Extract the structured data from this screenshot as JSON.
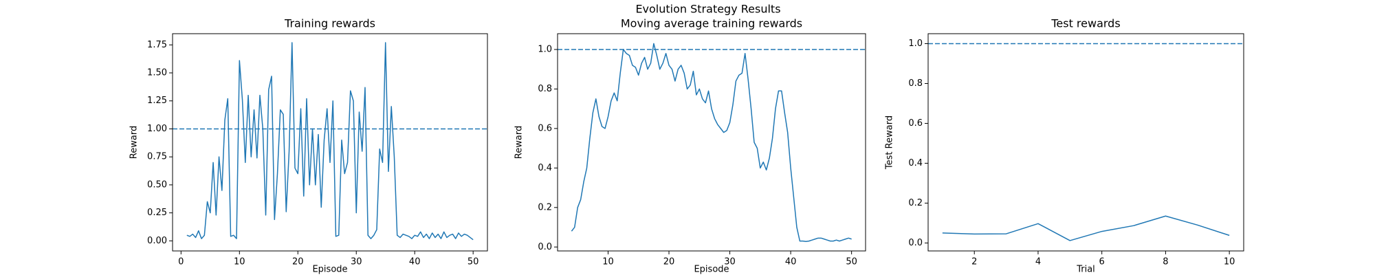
{
  "title": "Evolution Strategy Results",
  "chart_data": [
    {
      "type": "line",
      "title": "Training rewards",
      "xlabel": "Episode",
      "ylabel": "Reward",
      "color": "#1f77b4",
      "x": [
        1,
        1.5,
        2,
        2.5,
        3,
        3.5,
        4,
        4.5,
        5,
        5.5,
        6,
        6.5,
        7,
        7.5,
        8,
        8.5,
        9,
        9.5,
        10,
        10.5,
        11,
        11.5,
        12,
        12.5,
        13,
        13.5,
        14,
        14.5,
        15,
        15.5,
        16,
        16.5,
        17,
        17.5,
        18,
        18.5,
        19,
        19.5,
        20,
        20.5,
        21,
        21.5,
        22,
        22.5,
        23,
        23.5,
        24,
        24.5,
        25,
        25.5,
        26,
        26.5,
        27,
        27.5,
        28,
        28.5,
        29,
        29.5,
        30,
        30.5,
        31,
        31.5,
        32,
        32.5,
        33,
        33.5,
        34,
        34.5,
        35,
        35.5,
        36,
        36.5,
        37,
        37.5,
        38,
        38.5,
        39,
        39.5,
        40,
        40.5,
        41,
        41.5,
        42,
        42.5,
        43,
        43.5,
        44,
        44.5,
        45,
        45.5,
        46,
        46.5,
        47,
        47.5,
        48,
        48.5,
        49,
        49.5,
        50
      ],
      "values": [
        0.05,
        0.04,
        0.06,
        0.03,
        0.09,
        0.02,
        0.05,
        0.35,
        0.25,
        0.7,
        0.23,
        0.75,
        0.45,
        1.08,
        1.27,
        0.04,
        0.05,
        0.02,
        1.61,
        1.26,
        0.7,
        1.3,
        0.75,
        1.17,
        0.74,
        1.3,
        1.0,
        0.23,
        1.35,
        1.47,
        0.19,
        0.6,
        1.17,
        1.13,
        0.26,
        0.8,
        1.77,
        0.65,
        0.6,
        1.18,
        0.4,
        1.27,
        0.5,
        1.0,
        0.5,
        0.95,
        0.3,
        0.9,
        1.18,
        0.7,
        1.25,
        0.04,
        0.05,
        0.9,
        0.6,
        0.7,
        1.34,
        1.25,
        0.25,
        1.15,
        0.8,
        1.37,
        0.05,
        0.02,
        0.05,
        0.1,
        0.82,
        0.7,
        1.77,
        0.62,
        1.2,
        0.75,
        0.05,
        0.03,
        0.06,
        0.05,
        0.04,
        0.02,
        0.05,
        0.04,
        0.08,
        0.03,
        0.06,
        0.02,
        0.07,
        0.03,
        0.06,
        0.02,
        0.08,
        0.03,
        0.05,
        0.06,
        0.02,
        0.07,
        0.04,
        0.06,
        0.05,
        0.03,
        0.01
      ],
      "xlim": [
        -1.45,
        52.45
      ],
      "ylim": [
        -0.09,
        1.85
      ],
      "xticks": [
        0,
        10,
        20,
        30,
        40,
        50
      ],
      "yticks": [
        {
          "value": 0,
          "label": "0.00"
        },
        {
          "value": 0.25,
          "label": "0.25"
        },
        {
          "value": 0.5,
          "label": "0.50"
        },
        {
          "value": 0.75,
          "label": "0.75"
        },
        {
          "value": 1,
          "label": "1.00"
        },
        {
          "value": 1.25,
          "label": "1.25"
        },
        {
          "value": 1.5,
          "label": "1.50"
        },
        {
          "value": 1.75,
          "label": "1.75"
        }
      ],
      "hline": 1.0
    },
    {
      "type": "line",
      "title": "Moving average training rewards",
      "xlabel": "Episode",
      "ylabel": "Reward",
      "color": "#1f77b4",
      "x": [
        4,
        4.5,
        5,
        5.5,
        6,
        6.5,
        7,
        7.5,
        8,
        8.5,
        9,
        9.5,
        10,
        10.5,
        11,
        11.5,
        12,
        12.5,
        13,
        13.5,
        14,
        14.5,
        15,
        15.5,
        16,
        16.5,
        17,
        17.5,
        18,
        18.5,
        19,
        19.5,
        20,
        20.5,
        21,
        21.5,
        22,
        22.5,
        23,
        23.5,
        24,
        24.5,
        25,
        25.5,
        26,
        26.5,
        27,
        27.5,
        28,
        28.5,
        29,
        29.5,
        30,
        30.5,
        31,
        31.5,
        32,
        32.5,
        33,
        33.5,
        34,
        34.5,
        35,
        35.5,
        36,
        36.5,
        37,
        37.5,
        38,
        38.5,
        39,
        39.5,
        40,
        40.5,
        41,
        41.5,
        42,
        42.5,
        43,
        43.5,
        44,
        44.5,
        45,
        45.5,
        46,
        46.5,
        47,
        47.5,
        48,
        48.5,
        49,
        49.5,
        50
      ],
      "values": [
        0.08,
        0.1,
        0.2,
        0.24,
        0.33,
        0.4,
        0.55,
        0.68,
        0.75,
        0.66,
        0.61,
        0.6,
        0.66,
        0.74,
        0.78,
        0.74,
        0.88,
        1.0,
        0.98,
        0.97,
        0.92,
        0.91,
        0.87,
        0.93,
        0.96,
        0.9,
        0.93,
        1.03,
        0.97,
        0.9,
        0.93,
        0.98,
        0.92,
        0.9,
        0.84,
        0.9,
        0.92,
        0.88,
        0.8,
        0.82,
        0.89,
        0.77,
        0.8,
        0.75,
        0.73,
        0.79,
        0.7,
        0.65,
        0.62,
        0.6,
        0.58,
        0.59,
        0.63,
        0.72,
        0.84,
        0.87,
        0.88,
        0.98,
        0.85,
        0.7,
        0.53,
        0.5,
        0.4,
        0.43,
        0.39,
        0.45,
        0.55,
        0.7,
        0.79,
        0.79,
        0.68,
        0.58,
        0.4,
        0.25,
        0.1,
        0.03,
        0.03,
        0.028,
        0.03,
        0.035,
        0.04,
        0.045,
        0.045,
        0.04,
        0.035,
        0.03,
        0.03,
        0.035,
        0.03,
        0.035,
        0.04,
        0.045,
        0.04
      ],
      "xlim": [
        1.7,
        52.3
      ],
      "ylim": [
        -0.02,
        1.08
      ],
      "xticks": [
        10,
        20,
        30,
        40,
        50
      ],
      "yticks": [
        {
          "value": 0,
          "label": "0.0"
        },
        {
          "value": 0.2,
          "label": "0.2"
        },
        {
          "value": 0.4,
          "label": "0.4"
        },
        {
          "value": 0.6,
          "label": "0.6"
        },
        {
          "value": 0.8,
          "label": "0.8"
        },
        {
          "value": 1,
          "label": "1.0"
        }
      ],
      "hline": 1.0
    },
    {
      "type": "line",
      "title": "Test rewards",
      "xlabel": "Trial",
      "ylabel": "Test Reward",
      "color": "#1f77b4",
      "x": [
        1,
        2,
        3,
        4,
        5,
        6,
        7,
        8,
        9,
        10
      ],
      "values": [
        0.05,
        0.045,
        0.046,
        0.097,
        0.012,
        0.058,
        0.087,
        0.135,
        0.09,
        0.038
      ],
      "xlim": [
        0.55,
        10.45
      ],
      "ylim": [
        -0.04,
        1.05
      ],
      "xticks": [
        2,
        4,
        6,
        8,
        10
      ],
      "yticks": [
        {
          "value": 0,
          "label": "0.0"
        },
        {
          "value": 0.2,
          "label": "0.2"
        },
        {
          "value": 0.4,
          "label": "0.4"
        },
        {
          "value": 0.6,
          "label": "0.6"
        },
        {
          "value": 0.8,
          "label": "0.8"
        },
        {
          "value": 1,
          "label": "1.0"
        }
      ],
      "hline": 1.0
    }
  ]
}
